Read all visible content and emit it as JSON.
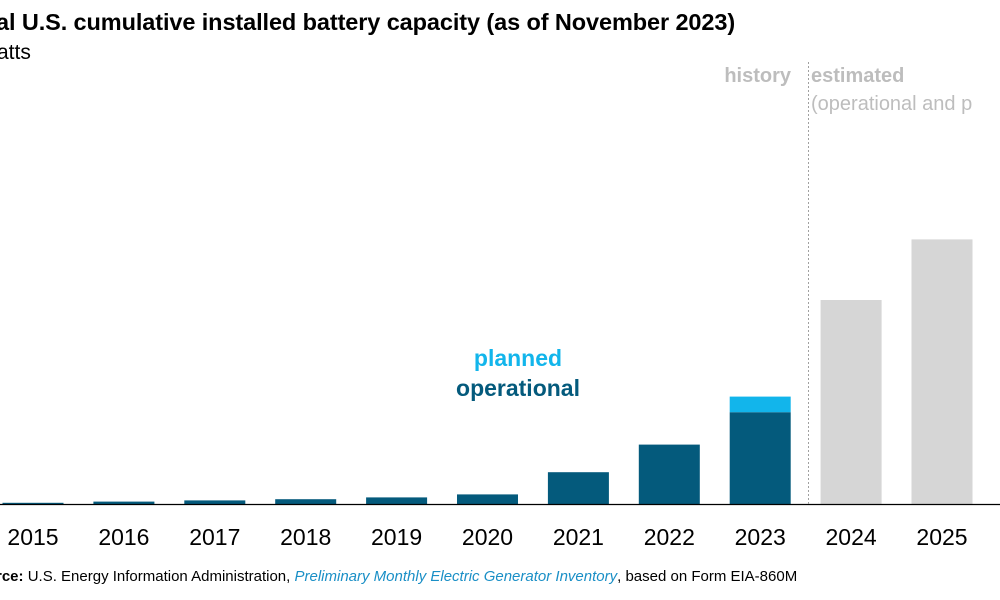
{
  "chart_data": {
    "type": "bar",
    "stacked": true,
    "title": "al U.S. cumulative installed battery capacity (as of November 2023)",
    "subtitle": "atts",
    "categories": [
      "2015",
      "2016",
      "2017",
      "2018",
      "2019",
      "2020",
      "2021",
      "2022",
      "2023",
      "2024",
      "2025"
    ],
    "series": [
      {
        "name": "operational",
        "color": "#045a7c",
        "values": [
          0.2,
          0.4,
          0.6,
          0.8,
          1.1,
          1.6,
          5.3,
          9.9,
          15.3,
          null,
          null
        ]
      },
      {
        "name": "planned",
        "color": "#12b5eb",
        "values": [
          0,
          0,
          0,
          0,
          0,
          0,
          0,
          0,
          2.6,
          null,
          null
        ]
      },
      {
        "values": [
          null,
          null,
          null,
          null,
          null,
          null,
          null,
          null,
          null,
          34.0,
          44.1
        ],
        "color": "#d6d6d6"
      }
    ],
    "ylim": [
      0,
      60
    ],
    "grid": false,
    "period_labels": {
      "history": "history",
      "estimated": "estimated",
      "estimated_note": "(operational and p"
    },
    "legend": {
      "planned": "planned",
      "operational": "operational"
    }
  },
  "source": {
    "label": "rce:",
    "text_before": " U.S. Energy Information Administration, ",
    "link": "Preliminary Monthly Electric Generator Inventory",
    "text_after": ", based on Form EIA-860M"
  },
  "colors": {
    "history_label": "#bdbdbd",
    "divider": "#a0a0a0",
    "axis": "#000000"
  }
}
